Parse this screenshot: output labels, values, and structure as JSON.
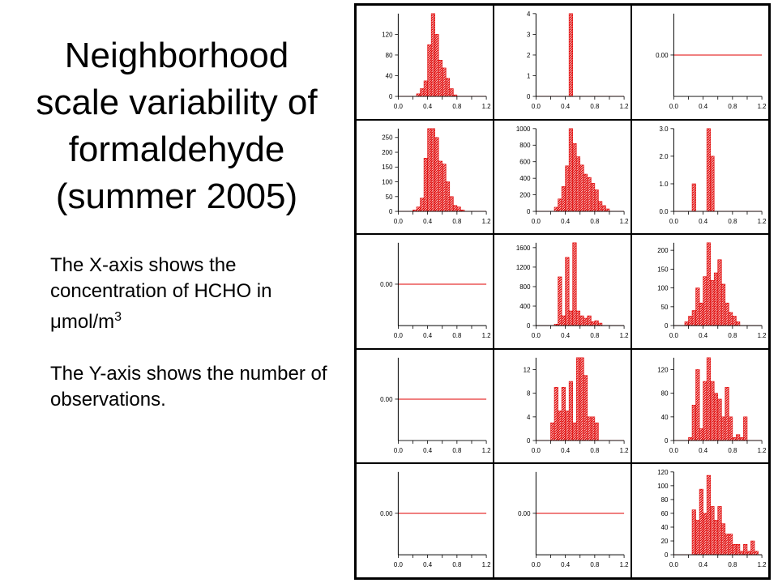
{
  "title": "Neighborhood scale variability of formaldehyde (summer 2005)",
  "description": {
    "x_axis_text": "The X-axis shows the concentration of HCHO in ",
    "x_axis_unit_prefix": "μ",
    "x_axis_unit": "mol/m",
    "x_axis_unit_exp": "3",
    "y_axis_text": "The Y-axis shows the number of observations."
  },
  "colors": {
    "bar": "#e00000",
    "hatch": "#ffffff",
    "axis": "#000000"
  },
  "chart_data": [
    {
      "type": "bar",
      "bin_width": 0.05,
      "xlim": [
        0,
        1.2
      ],
      "xticks": [
        0.0,
        0.4,
        0.8,
        1.2
      ],
      "ylim": [
        0,
        160
      ],
      "yticks": [
        0,
        40,
        80,
        120
      ],
      "ytick_labels": [
        "0",
        "40",
        "80",
        "120"
      ],
      "bins": [
        {
          "x": 0.25,
          "y": 5
        },
        {
          "x": 0.3,
          "y": 15
        },
        {
          "x": 0.35,
          "y": 30
        },
        {
          "x": 0.4,
          "y": 100
        },
        {
          "x": 0.45,
          "y": 160
        },
        {
          "x": 0.5,
          "y": 120
        },
        {
          "x": 0.55,
          "y": 70
        },
        {
          "x": 0.6,
          "y": 55
        },
        {
          "x": 0.65,
          "y": 35
        },
        {
          "x": 0.7,
          "y": 15
        },
        {
          "x": 0.75,
          "y": 3
        }
      ]
    },
    {
      "type": "bar",
      "bin_width": 0.05,
      "xlim": [
        0,
        1.2
      ],
      "xticks": [
        0.0,
        0.4,
        0.8,
        1.2
      ],
      "ylim": [
        0,
        4
      ],
      "yticks": [
        0,
        1,
        2,
        3,
        4
      ],
      "ytick_labels": [
        "0",
        "1",
        "2",
        "3",
        "4"
      ],
      "bins": [
        {
          "x": 0.45,
          "y": 4
        }
      ]
    },
    {
      "type": "bar",
      "bin_width": 0.05,
      "xlim": [
        0,
        1.2
      ],
      "xticks": [
        0.0,
        0.4,
        0.8,
        1.2
      ],
      "ylim": [
        -1,
        1
      ],
      "yticks": [
        0
      ],
      "ytick_labels": [
        "0.00"
      ],
      "flat_line": true,
      "bins": []
    },
    {
      "type": "bar",
      "bin_width": 0.05,
      "xlim": [
        0,
        1.2
      ],
      "xticks": [
        0.0,
        0.4,
        0.8,
        1.2
      ],
      "ylim": [
        0,
        280
      ],
      "yticks": [
        0,
        50,
        100,
        150,
        200,
        250
      ],
      "ytick_labels": [
        "0",
        "50",
        "100",
        "150",
        "200",
        "250"
      ],
      "bins": [
        {
          "x": 0.2,
          "y": 5
        },
        {
          "x": 0.25,
          "y": 15
        },
        {
          "x": 0.3,
          "y": 45
        },
        {
          "x": 0.35,
          "y": 180
        },
        {
          "x": 0.4,
          "y": 280
        },
        {
          "x": 0.45,
          "y": 280
        },
        {
          "x": 0.5,
          "y": 250
        },
        {
          "x": 0.55,
          "y": 170
        },
        {
          "x": 0.6,
          "y": 160
        },
        {
          "x": 0.65,
          "y": 100
        },
        {
          "x": 0.7,
          "y": 50
        },
        {
          "x": 0.75,
          "y": 20
        },
        {
          "x": 0.8,
          "y": 15
        },
        {
          "x": 0.85,
          "y": 5
        }
      ]
    },
    {
      "type": "bar",
      "bin_width": 0.05,
      "xlim": [
        0,
        1.2
      ],
      "xticks": [
        0.0,
        0.4,
        0.8,
        1.2
      ],
      "ylim": [
        0,
        1000
      ],
      "yticks": [
        0,
        200,
        400,
        600,
        800,
        1000
      ],
      "ytick_labels": [
        "0",
        "200",
        "400",
        "600",
        "800",
        "1000"
      ],
      "bins": [
        {
          "x": 0.25,
          "y": 50
        },
        {
          "x": 0.3,
          "y": 150
        },
        {
          "x": 0.35,
          "y": 300
        },
        {
          "x": 0.4,
          "y": 550
        },
        {
          "x": 0.45,
          "y": 1000
        },
        {
          "x": 0.5,
          "y": 820
        },
        {
          "x": 0.55,
          "y": 660
        },
        {
          "x": 0.6,
          "y": 560
        },
        {
          "x": 0.65,
          "y": 450
        },
        {
          "x": 0.7,
          "y": 410
        },
        {
          "x": 0.75,
          "y": 340
        },
        {
          "x": 0.8,
          "y": 260
        },
        {
          "x": 0.85,
          "y": 120
        },
        {
          "x": 0.9,
          "y": 70
        },
        {
          "x": 0.95,
          "y": 30
        }
      ]
    },
    {
      "type": "bar",
      "bin_width": 0.05,
      "xlim": [
        0,
        1.2
      ],
      "xticks": [
        0.0,
        0.4,
        0.8,
        1.2
      ],
      "ylim": [
        0,
        3
      ],
      "yticks": [
        0,
        1,
        2,
        3
      ],
      "ytick_labels": [
        "0.0",
        "1.0",
        "2.0",
        "3.0"
      ],
      "bins": [
        {
          "x": 0.25,
          "y": 1
        },
        {
          "x": 0.45,
          "y": 3
        },
        {
          "x": 0.5,
          "y": 2
        }
      ]
    },
    {
      "type": "bar",
      "bin_width": 0.05,
      "xlim": [
        0,
        1.2
      ],
      "xticks": [
        0.0,
        0.4,
        0.8,
        1.2
      ],
      "ylim": [
        -1,
        1
      ],
      "yticks": [
        0
      ],
      "ytick_labels": [
        "0.00"
      ],
      "flat_line": true,
      "bins": []
    },
    {
      "type": "bar",
      "bin_width": 0.05,
      "xlim": [
        0,
        1.2
      ],
      "xticks": [
        0.0,
        0.4,
        0.8,
        1.2
      ],
      "ylim": [
        0,
        1700
      ],
      "yticks": [
        0,
        400,
        800,
        1200,
        1600
      ],
      "ytick_labels": [
        "0",
        "400",
        "800",
        "1200",
        "1600"
      ],
      "bins": [
        {
          "x": 0.25,
          "y": 30
        },
        {
          "x": 0.3,
          "y": 1000
        },
        {
          "x": 0.35,
          "y": 200
        },
        {
          "x": 0.4,
          "y": 1400
        },
        {
          "x": 0.45,
          "y": 300
        },
        {
          "x": 0.5,
          "y": 1700
        },
        {
          "x": 0.55,
          "y": 300
        },
        {
          "x": 0.6,
          "y": 200
        },
        {
          "x": 0.65,
          "y": 150
        },
        {
          "x": 0.7,
          "y": 200
        },
        {
          "x": 0.75,
          "y": 80
        },
        {
          "x": 0.8,
          "y": 100
        },
        {
          "x": 0.85,
          "y": 50
        }
      ]
    },
    {
      "type": "bar",
      "bin_width": 0.05,
      "xlim": [
        0,
        1.2
      ],
      "xticks": [
        0.0,
        0.4,
        0.8,
        1.2
      ],
      "ylim": [
        0,
        220
      ],
      "yticks": [
        0,
        50,
        100,
        150,
        200
      ],
      "ytick_labels": [
        "0",
        "50",
        "100",
        "150",
        "200"
      ],
      "bins": [
        {
          "x": 0.15,
          "y": 10
        },
        {
          "x": 0.2,
          "y": 25
        },
        {
          "x": 0.25,
          "y": 40
        },
        {
          "x": 0.3,
          "y": 100
        },
        {
          "x": 0.35,
          "y": 60
        },
        {
          "x": 0.4,
          "y": 130
        },
        {
          "x": 0.45,
          "y": 220
        },
        {
          "x": 0.5,
          "y": 120
        },
        {
          "x": 0.55,
          "y": 140
        },
        {
          "x": 0.6,
          "y": 175
        },
        {
          "x": 0.65,
          "y": 110
        },
        {
          "x": 0.7,
          "y": 60
        },
        {
          "x": 0.75,
          "y": 35
        },
        {
          "x": 0.8,
          "y": 25
        },
        {
          "x": 0.85,
          "y": 10
        }
      ]
    },
    {
      "type": "bar",
      "bin_width": 0.05,
      "xlim": [
        0,
        1.2
      ],
      "xticks": [
        0.0,
        0.4,
        0.8,
        1.2
      ],
      "ylim": [
        -1,
        1
      ],
      "yticks": [
        0
      ],
      "ytick_labels": [
        "0.00"
      ],
      "flat_line": true,
      "bins": []
    },
    {
      "type": "bar",
      "bin_width": 0.05,
      "xlim": [
        0,
        1.2
      ],
      "xticks": [
        0.0,
        0.4,
        0.8,
        1.2
      ],
      "ylim": [
        0,
        14
      ],
      "yticks": [
        0,
        4,
        8,
        12
      ],
      "ytick_labels": [
        "0",
        "4",
        "8",
        "12"
      ],
      "bins": [
        {
          "x": 0.2,
          "y": 3
        },
        {
          "x": 0.25,
          "y": 9
        },
        {
          "x": 0.3,
          "y": 5
        },
        {
          "x": 0.35,
          "y": 9
        },
        {
          "x": 0.4,
          "y": 5
        },
        {
          "x": 0.45,
          "y": 10
        },
        {
          "x": 0.5,
          "y": 3
        },
        {
          "x": 0.55,
          "y": 14
        },
        {
          "x": 0.6,
          "y": 14
        },
        {
          "x": 0.65,
          "y": 11
        },
        {
          "x": 0.7,
          "y": 4
        },
        {
          "x": 0.75,
          "y": 4
        },
        {
          "x": 0.8,
          "y": 3
        }
      ]
    },
    {
      "type": "bar",
      "bin_width": 0.05,
      "xlim": [
        0,
        1.2
      ],
      "xticks": [
        0.0,
        0.4,
        0.8,
        1.2
      ],
      "ylim": [
        0,
        140
      ],
      "yticks": [
        0,
        40,
        80,
        120
      ],
      "ytick_labels": [
        "0",
        "40",
        "80",
        "120"
      ],
      "bins": [
        {
          "x": 0.2,
          "y": 5
        },
        {
          "x": 0.25,
          "y": 60
        },
        {
          "x": 0.3,
          "y": 120
        },
        {
          "x": 0.35,
          "y": 20
        },
        {
          "x": 0.4,
          "y": 100
        },
        {
          "x": 0.45,
          "y": 140
        },
        {
          "x": 0.5,
          "y": 100
        },
        {
          "x": 0.55,
          "y": 80
        },
        {
          "x": 0.6,
          "y": 70
        },
        {
          "x": 0.65,
          "y": 40
        },
        {
          "x": 0.7,
          "y": 90
        },
        {
          "x": 0.75,
          "y": 40
        },
        {
          "x": 0.8,
          "y": 5
        },
        {
          "x": 0.85,
          "y": 10
        },
        {
          "x": 0.9,
          "y": 5
        },
        {
          "x": 0.95,
          "y": 40
        }
      ]
    },
    {
      "type": "bar",
      "bin_width": 0.05,
      "xlim": [
        0,
        1.2
      ],
      "xticks": [
        0.0,
        0.4,
        0.8,
        1.2
      ],
      "ylim": [
        -1,
        1
      ],
      "yticks": [
        0
      ],
      "ytick_labels": [
        "0.00"
      ],
      "flat_line": true,
      "bins": []
    },
    {
      "type": "bar",
      "bin_width": 0.05,
      "xlim": [
        0,
        1.2
      ],
      "xticks": [
        0.0,
        0.4,
        0.8,
        1.2
      ],
      "ylim": [
        -1,
        1
      ],
      "yticks": [
        0
      ],
      "ytick_labels": [
        "0.00"
      ],
      "flat_line": true,
      "bins": []
    },
    {
      "type": "bar",
      "bin_width": 0.05,
      "xlim": [
        0,
        1.2
      ],
      "xticks": [
        0.0,
        0.4,
        0.8,
        1.2
      ],
      "ylim": [
        0,
        120
      ],
      "yticks": [
        0,
        20,
        40,
        60,
        80,
        100,
        120
      ],
      "ytick_labels": [
        "0",
        "20",
        "40",
        "60",
        "80",
        "100",
        "120"
      ],
      "bins": [
        {
          "x": 0.25,
          "y": 65
        },
        {
          "x": 0.3,
          "y": 50
        },
        {
          "x": 0.35,
          "y": 95
        },
        {
          "x": 0.4,
          "y": 60
        },
        {
          "x": 0.45,
          "y": 115
        },
        {
          "x": 0.5,
          "y": 70
        },
        {
          "x": 0.55,
          "y": 50
        },
        {
          "x": 0.6,
          "y": 70
        },
        {
          "x": 0.65,
          "y": 45
        },
        {
          "x": 0.7,
          "y": 30
        },
        {
          "x": 0.75,
          "y": 30
        },
        {
          "x": 0.8,
          "y": 15
        },
        {
          "x": 0.85,
          "y": 15
        },
        {
          "x": 0.9,
          "y": 5
        },
        {
          "x": 0.95,
          "y": 15
        },
        {
          "x": 1.0,
          "y": 5
        },
        {
          "x": 1.05,
          "y": 20
        },
        {
          "x": 1.1,
          "y": 5
        }
      ]
    }
  ]
}
